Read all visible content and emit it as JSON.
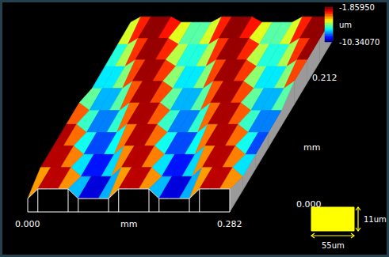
{
  "chart_data": {
    "type": "surface",
    "x": [
      0,
      0.0141,
      0.0282,
      0.0423,
      0.0564,
      0.0705,
      0.0846,
      0.0987,
      0.1128,
      0.1269,
      0.141,
      0.1551,
      0.1692,
      0.1833,
      0.1974,
      0.2115,
      0.2256,
      0.2397,
      0.2538,
      0.2679,
      0.282
    ],
    "y": [
      0,
      0.0265,
      0.053,
      0.0795,
      0.106,
      0.1325,
      0.159,
      0.1855,
      0.212
    ],
    "z": [
      [
        -9.8,
        -2.4,
        -2.4,
        -2.4,
        -2.4,
        -9.8,
        -9.8,
        -9.8,
        -9.8,
        -2.4,
        -2.4,
        -2.4,
        -2.4,
        -9.8,
        -9.8,
        -9.8,
        -9.8,
        -2.4,
        -2.4,
        -2.4,
        -2.4
      ],
      [
        -2.35,
        -2.35,
        -2.35,
        -2.35,
        -9.35,
        -9.35,
        -9.35,
        -9.35,
        -2.35,
        -2.35,
        -2.35,
        -2.35,
        -9.35,
        -9.35,
        -9.35,
        -9.35,
        -2.35,
        -2.35,
        -2.35,
        -2.35,
        -9.35
      ],
      [
        -2.3,
        -2.3,
        -2.3,
        -8.9,
        -8.9,
        -8.9,
        -8.9,
        -2.3,
        -2.3,
        -2.3,
        -2.3,
        -8.9,
        -8.9,
        -8.9,
        -8.9,
        -2.3,
        -2.3,
        -2.3,
        -2.3,
        -8.9,
        -8.9
      ],
      [
        -2.25,
        -2.25,
        -8.45,
        -8.45,
        -8.45,
        -8.45,
        -2.25,
        -2.25,
        -2.25,
        -2.25,
        -8.45,
        -8.45,
        -8.45,
        -8.45,
        -2.25,
        -2.25,
        -2.25,
        -2.25,
        -8.45,
        -8.45,
        -8.45
      ],
      [
        -2.2,
        -8.0,
        -8.0,
        -8.0,
        -8.0,
        -2.2,
        -2.2,
        -2.2,
        -2.2,
        -8.0,
        -8.0,
        -8.0,
        -8.0,
        -2.2,
        -2.2,
        -2.2,
        -2.2,
        -8.0,
        -8.0,
        -8.0,
        -8.0
      ],
      [
        -7.55,
        -7.55,
        -7.55,
        -7.55,
        -2.15,
        -2.15,
        -2.15,
        -2.15,
        -7.55,
        -7.55,
        -7.55,
        -7.55,
        -2.15,
        -2.15,
        -2.15,
        -2.15,
        -7.55,
        -7.55,
        -7.55,
        -7.55,
        -2.15
      ],
      [
        -7.1,
        -7.1,
        -7.1,
        -2.1,
        -2.1,
        -2.1,
        -2.1,
        -7.1,
        -7.1,
        -7.1,
        -7.1,
        -2.1,
        -2.1,
        -2.1,
        -2.1,
        -7.1,
        -7.1,
        -7.1,
        -7.1,
        -2.1,
        -2.1
      ],
      [
        -6.65,
        -6.65,
        -2.05,
        -2.05,
        -2.05,
        -2.05,
        -6.65,
        -6.65,
        -6.65,
        -6.65,
        -2.05,
        -2.05,
        -2.05,
        -2.05,
        -6.65,
        -6.65,
        -6.65,
        -6.65,
        -2.05,
        -2.05,
        -2.05
      ],
      [
        -6.2,
        -2.0,
        -2.0,
        -2.0,
        -2.0,
        -6.2,
        -6.2,
        -6.2,
        -6.2,
        -2.0,
        -2.0,
        -2.0,
        -2.0,
        -6.2,
        -6.2,
        -6.2,
        -6.2,
        -2.0,
        -2.0,
        -2.0,
        -2.0
      ]
    ],
    "xlim": [
      0,
      0.282
    ],
    "ylim": [
      0,
      0.212
    ],
    "xticks": [
      {
        "value": 0,
        "label": "0.000"
      },
      {
        "value": 0.282,
        "label": "0.282"
      }
    ],
    "yticks": [
      {
        "value": 0,
        "label": "0.000"
      },
      {
        "value": 0.212,
        "label": "0.212"
      }
    ],
    "x_label": "mm",
    "y_label": "mm",
    "colorbar": {
      "title": "um",
      "range": [
        -10.3407,
        -1.8595
      ],
      "ticks": [
        {
          "value": -10.3407,
          "label": "-10.34070"
        },
        {
          "value": -1.8595,
          "label": "-1.85950"
        }
      ]
    },
    "annotations": [
      {
        "text": "11um"
      },
      {
        "text": "55um"
      }
    ]
  }
}
